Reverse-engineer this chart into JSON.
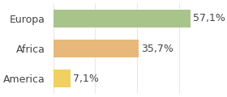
{
  "categories": [
    "America",
    "Africa",
    "Europa"
  ],
  "values": [
    7.1,
    35.7,
    57.1
  ],
  "labels": [
    "7,1%",
    "35,7%",
    "57,1%"
  ],
  "bar_colors": [
    "#f0d060",
    "#e8b87a",
    "#a8c48a"
  ],
  "xlim": [
    0,
    70
  ],
  "background_color": "#ffffff",
  "tick_fontsize": 9,
  "label_fontsize": 9
}
